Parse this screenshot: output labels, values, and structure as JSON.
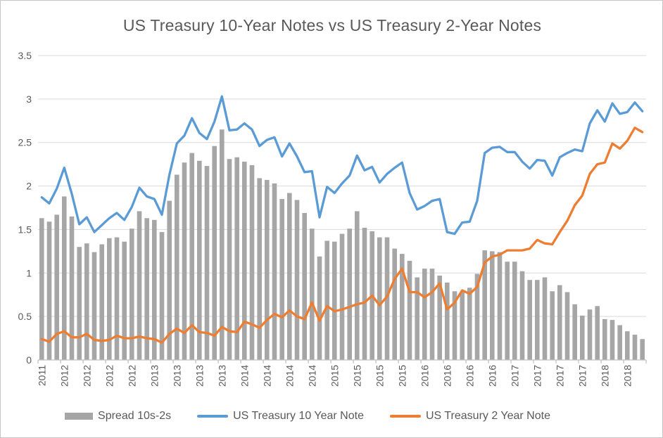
{
  "chart_data": {
    "type": "combo",
    "title": "US Treasury 10-Year Notes vs US Treasury 2-Year Notes",
    "title_color": "#595959",
    "axis_text_color": "#595959",
    "gridline_color": "#D9D9D9",
    "axis_line_color": "#BFBFBF",
    "background": "#FFFFFF",
    "legend_position": "bottom",
    "grid": "horizontal",
    "y_axis": {
      "min": 0,
      "max": 3.5,
      "tick_step": 0.5,
      "tick_labels": [
        "3.5",
        "3",
        "2.5",
        "2",
        "1.5",
        "1",
        "0.5",
        "0"
      ]
    },
    "x_axis": {
      "points_count": 81,
      "label_interval": 3,
      "tick_labels": [
        "2011",
        "2012",
        "2012",
        "2012",
        "2012",
        "2013",
        "2013",
        "2013",
        "2013",
        "2014",
        "2014",
        "2014",
        "2014",
        "2015",
        "2015",
        "2015",
        "2015",
        "2016",
        "2016",
        "2016",
        "2016",
        "2017",
        "2017",
        "2017",
        "2017",
        "2018",
        "2018"
      ]
    },
    "series": [
      {
        "name": "Spread 10s-2s",
        "type": "bar",
        "color": "#A6A6A6",
        "values": [
          1.63,
          1.59,
          1.67,
          1.88,
          1.65,
          1.3,
          1.34,
          1.24,
          1.33,
          1.4,
          1.41,
          1.36,
          1.51,
          1.71,
          1.63,
          1.61,
          1.47,
          1.83,
          2.13,
          2.27,
          2.38,
          2.29,
          2.23,
          2.46,
          2.65,
          2.31,
          2.33,
          2.28,
          2.24,
          2.09,
          2.07,
          2.03,
          1.85,
          1.92,
          1.84,
          1.69,
          1.51,
          1.19,
          1.37,
          1.36,
          1.45,
          1.51,
          1.71,
          1.52,
          1.48,
          1.41,
          1.41,
          1.28,
          1.22,
          1.14,
          0.95,
          1.05,
          1.05,
          0.97,
          0.89,
          0.79,
          0.78,
          0.83,
          0.99,
          1.26,
          1.25,
          1.24,
          1.13,
          1.13,
          1.02,
          0.92,
          0.92,
          0.95,
          0.79,
          0.86,
          0.78,
          0.64,
          0.51,
          0.58,
          0.62,
          0.47,
          0.46,
          0.4,
          0.33,
          0.29,
          0.24
        ]
      },
      {
        "name": "US Treasury 10 Year Note",
        "type": "line",
        "color": "#5B9BD5",
        "values": [
          1.87,
          1.8,
          1.97,
          2.21,
          1.91,
          1.56,
          1.64,
          1.47,
          1.55,
          1.63,
          1.69,
          1.61,
          1.76,
          1.98,
          1.88,
          1.85,
          1.67,
          2.13,
          2.49,
          2.58,
          2.78,
          2.61,
          2.54,
          2.74,
          3.03,
          2.64,
          2.65,
          2.72,
          2.65,
          2.46,
          2.53,
          2.56,
          2.34,
          2.49,
          2.34,
          2.16,
          2.17,
          1.64,
          1.99,
          1.92,
          2.03,
          2.12,
          2.35,
          2.18,
          2.22,
          2.04,
          2.14,
          2.21,
          2.27,
          1.92,
          1.73,
          1.77,
          1.83,
          1.85,
          1.47,
          1.45,
          1.58,
          1.59,
          1.83,
          2.38,
          2.44,
          2.45,
          2.39,
          2.39,
          2.28,
          2.2,
          2.3,
          2.29,
          2.12,
          2.33,
          2.38,
          2.42,
          2.4,
          2.72,
          2.87,
          2.74,
          2.95,
          2.83,
          2.85,
          2.96,
          2.86
        ]
      },
      {
        "name": "US Treasury 2 Year Note",
        "type": "line",
        "color": "#ED7D31",
        "values": [
          0.24,
          0.21,
          0.3,
          0.33,
          0.26,
          0.26,
          0.3,
          0.23,
          0.22,
          0.23,
          0.28,
          0.25,
          0.25,
          0.27,
          0.25,
          0.24,
          0.2,
          0.3,
          0.36,
          0.31,
          0.4,
          0.32,
          0.31,
          0.28,
          0.38,
          0.33,
          0.32,
          0.44,
          0.41,
          0.37,
          0.46,
          0.53,
          0.49,
          0.57,
          0.5,
          0.47,
          0.66,
          0.45,
          0.62,
          0.56,
          0.58,
          0.61,
          0.64,
          0.66,
          0.74,
          0.63,
          0.73,
          0.93,
          1.05,
          0.78,
          0.78,
          0.72,
          0.78,
          0.88,
          0.58,
          0.66,
          0.8,
          0.76,
          0.84,
          1.12,
          1.19,
          1.21,
          1.26,
          1.26,
          1.26,
          1.28,
          1.38,
          1.34,
          1.33,
          1.47,
          1.6,
          1.78,
          1.89,
          2.14,
          2.25,
          2.27,
          2.49,
          2.43,
          2.52,
          2.67,
          2.62
        ]
      }
    ]
  }
}
